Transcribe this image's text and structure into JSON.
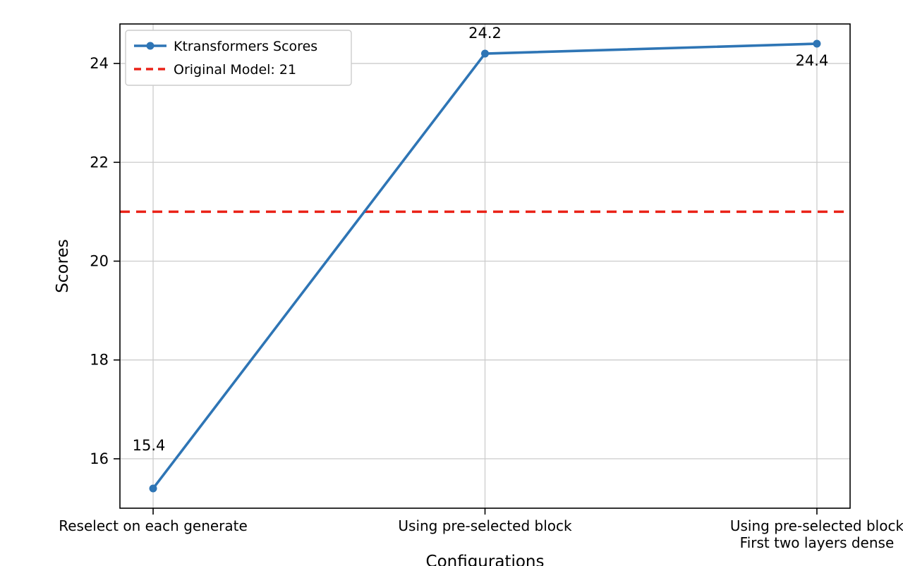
{
  "chart_data": {
    "type": "line",
    "title": "",
    "xlabel": "Configurations",
    "ylabel": "Scores",
    "categories": [
      "Reselect on each generate",
      "Using pre-selected block",
      "Using pre-selected block\nFirst two layers dense"
    ],
    "series": [
      {
        "name": "Ktransformers Scores",
        "values": [
          15.4,
          24.2,
          24.4
        ],
        "color": "#2e75b5",
        "marker": "circle"
      }
    ],
    "data_labels": [
      "15.4",
      "24.2",
      "24.4"
    ],
    "reference_line": {
      "label": "Original Model: 21",
      "value": 21,
      "color": "#ea2218",
      "style": "dashed"
    },
    "yticks": [
      16,
      18,
      20,
      22,
      24
    ],
    "ylim": [
      15.0,
      24.8
    ],
    "grid": true,
    "grid_color": "#cccccc",
    "legend_position": "upper left",
    "legend_border_color": "#cccccc",
    "text_color": "#000000"
  }
}
